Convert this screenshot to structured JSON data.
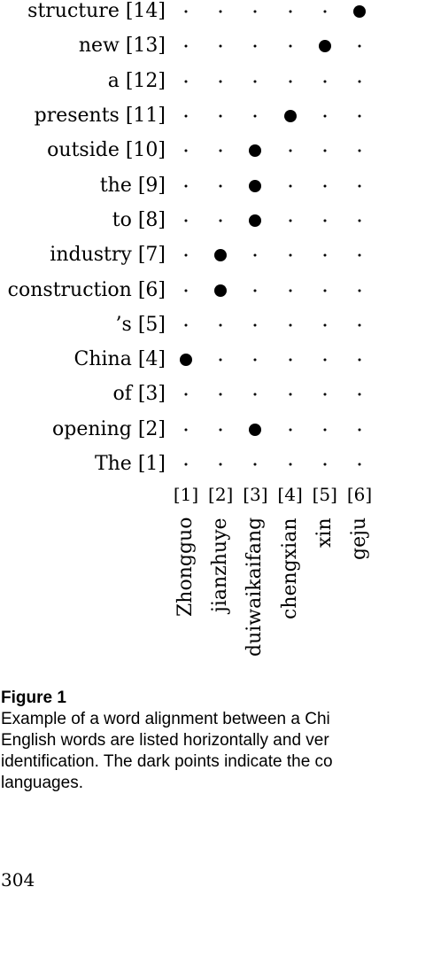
{
  "figure": {
    "english_words": [
      {
        "word": "The",
        "index": "[1]"
      },
      {
        "word": "opening",
        "index": "[2]"
      },
      {
        "word": "of",
        "index": "[3]"
      },
      {
        "word": "China",
        "index": "[4]"
      },
      {
        "word": "’s",
        "index": "[5]"
      },
      {
        "word": "construction",
        "index": "[6]"
      },
      {
        "word": "industry",
        "index": "[7]"
      },
      {
        "word": "to",
        "index": "[8]"
      },
      {
        "word": "the",
        "index": "[9]"
      },
      {
        "word": "outside",
        "index": "[10]"
      },
      {
        "word": "presents",
        "index": "[11]"
      },
      {
        "word": "a",
        "index": "[12]"
      },
      {
        "word": "new",
        "index": "[13]"
      },
      {
        "word": "structure",
        "index": "[14]"
      }
    ],
    "chinese_words": [
      {
        "word": "Zhongguo",
        "index": "[1]"
      },
      {
        "word": "jianzhuye",
        "index": "[2]"
      },
      {
        "word": "duiwaikaifang",
        "index": "[3]"
      },
      {
        "word": "chengxian",
        "index": "[4]"
      },
      {
        "word": "xin",
        "index": "[5]"
      },
      {
        "word": "geju",
        "index": "[6]"
      }
    ],
    "alignments": [
      {
        "english": 4,
        "chinese": 1
      },
      {
        "english": 6,
        "chinese": 2
      },
      {
        "english": 7,
        "chinese": 2
      },
      {
        "english": 2,
        "chinese": 3
      },
      {
        "english": 8,
        "chinese": 3
      },
      {
        "english": 9,
        "chinese": 3
      },
      {
        "english": 10,
        "chinese": 3
      },
      {
        "english": 11,
        "chinese": 4
      },
      {
        "english": 13,
        "chinese": 5
      },
      {
        "english": 14,
        "chinese": 6
      }
    ]
  },
  "caption": {
    "title": "Figure 1",
    "line1": "Example of a word alignment between a Chi",
    "line2": "English words are listed horizontally and ver",
    "line3": "identification. The dark points indicate the co",
    "line4": "languages."
  },
  "page_number": "304"
}
